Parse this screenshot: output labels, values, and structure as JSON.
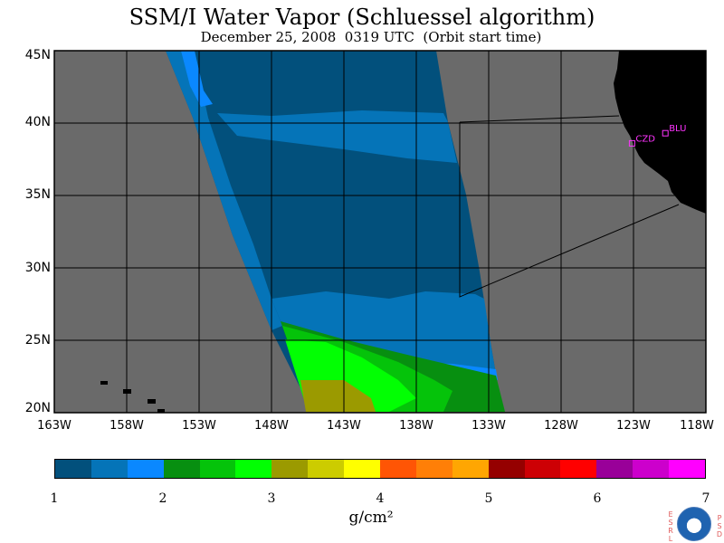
{
  "header": {
    "title": "SSM/I Water Vapor (Schluessel algorithm)",
    "subtitle": "December 25, 2008  0319 UTC  (Orbit start time)"
  },
  "map": {
    "lat_labels": [
      "45N",
      "40N",
      "35N",
      "30N",
      "25N",
      "20N"
    ],
    "lon_labels": [
      "163W",
      "158W",
      "153W",
      "148W",
      "143W",
      "138W",
      "133W",
      "128W",
      "123W",
      "118W"
    ],
    "lon_range": [
      -163,
      -118
    ],
    "lat_range": [
      20,
      45
    ],
    "stations": [
      {
        "id": "CZD",
        "lon": -123.1,
        "lat": 38.6
      },
      {
        "id": "BLU",
        "lon": -120.8,
        "lat": 39.3
      }
    ],
    "colors": {
      "no_data": "#6a6a6a",
      "land": "#000000",
      "grid": "#000000",
      "station": "#ff33ff"
    }
  },
  "colorbar": {
    "ticks": [
      "1",
      "2",
      "3",
      "4",
      "5",
      "6",
      "7"
    ],
    "unit": "g/cm²",
    "colors": [
      "#02507c",
      "#0574b8",
      "#0a88ff",
      "#078f10",
      "#05c30a",
      "#02ff03",
      "#9b9a00",
      "#cccc00",
      "#ffff00",
      "#ff5505",
      "#ff7f07",
      "#ffa602",
      "#950000",
      "#cd0005",
      "#ff0000",
      "#990099",
      "#cc00cc",
      "#ff00ff"
    ]
  },
  "logo": {
    "left_letters": [
      "E",
      "S",
      "R",
      "L"
    ],
    "right_letters": [
      "P",
      "S",
      "D"
    ]
  }
}
